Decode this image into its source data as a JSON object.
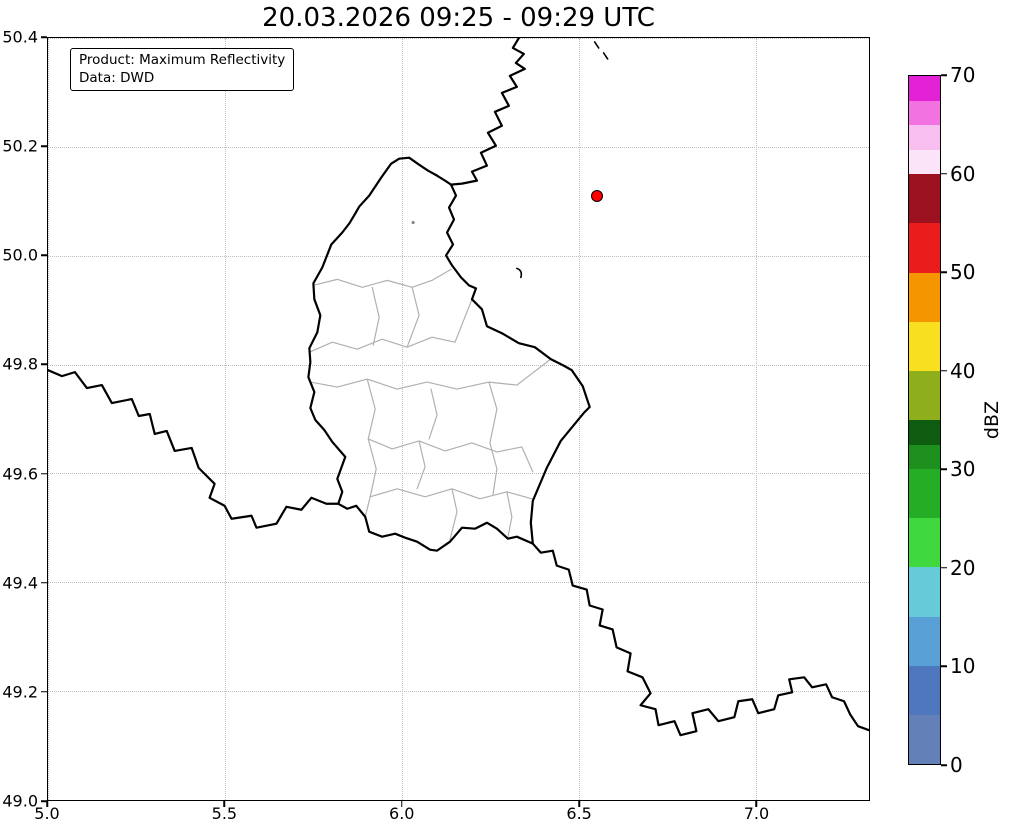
{
  "figure": {
    "title": "20.03.2026 09:25 - 09:29 UTC"
  },
  "info_box": {
    "line1": "Product: Maximum Reflectivity",
    "line2": "Data: DWD"
  },
  "axes": {
    "x_range": [
      5.0,
      7.32
    ],
    "y_range": [
      49.0,
      50.4
    ],
    "x_tick_values": [
      5.0,
      5.5,
      6.0,
      6.5,
      7.0
    ],
    "x_tick_labels": [
      "5.0",
      "5.5",
      "6.0",
      "6.5",
      "7.0"
    ],
    "y_tick_values": [
      49.0,
      49.2,
      49.4,
      49.6,
      49.8,
      50.0,
      50.2,
      50.4
    ],
    "y_tick_labels": [
      "49.0",
      "49.2",
      "49.4",
      "49.6",
      "49.8",
      "50.0",
      "50.2",
      "50.4"
    ]
  },
  "colorbar": {
    "label": "dBZ",
    "min": 0,
    "max": 70,
    "tick_values": [
      0,
      10,
      20,
      30,
      40,
      50,
      60,
      70
    ],
    "tick_labels": [
      "0",
      "10",
      "20",
      "30",
      "40",
      "50",
      "60",
      "70"
    ],
    "segments": [
      {
        "from": 0,
        "to": 5,
        "color": "#6380b8"
      },
      {
        "from": 5,
        "to": 10,
        "color": "#4e77bd"
      },
      {
        "from": 10,
        "to": 15,
        "color": "#58a0d6"
      },
      {
        "from": 15,
        "to": 20,
        "color": "#67cad9"
      },
      {
        "from": 20,
        "to": 25,
        "color": "#3fd83f"
      },
      {
        "from": 25,
        "to": 30,
        "color": "#25ad25"
      },
      {
        "from": 30,
        "to": 32.5,
        "color": "#1d8f1d"
      },
      {
        "from": 32.5,
        "to": 35,
        "color": "#0e5c10"
      },
      {
        "from": 35,
        "to": 40,
        "color": "#8fae1c"
      },
      {
        "from": 40,
        "to": 45,
        "color": "#f8df1f"
      },
      {
        "from": 45,
        "to": 50,
        "color": "#f59500"
      },
      {
        "from": 50,
        "to": 55,
        "color": "#ea1c1c"
      },
      {
        "from": 55,
        "to": 60,
        "color": "#9c1120"
      },
      {
        "from": 60,
        "to": 62.5,
        "color": "#fce4f8"
      },
      {
        "from": 62.5,
        "to": 65,
        "color": "#f9bef0"
      },
      {
        "from": 65,
        "to": 67.5,
        "color": "#f272e2"
      },
      {
        "from": 67.5,
        "to": 70,
        "color": "#e322d6"
      }
    ]
  },
  "marker": {
    "lon": 6.55,
    "lat": 50.11,
    "fill": "#ff0000",
    "edge": "#000000"
  },
  "map": {
    "country_border_color": "#000000",
    "district_border_color": "#b0b0b0"
  }
}
